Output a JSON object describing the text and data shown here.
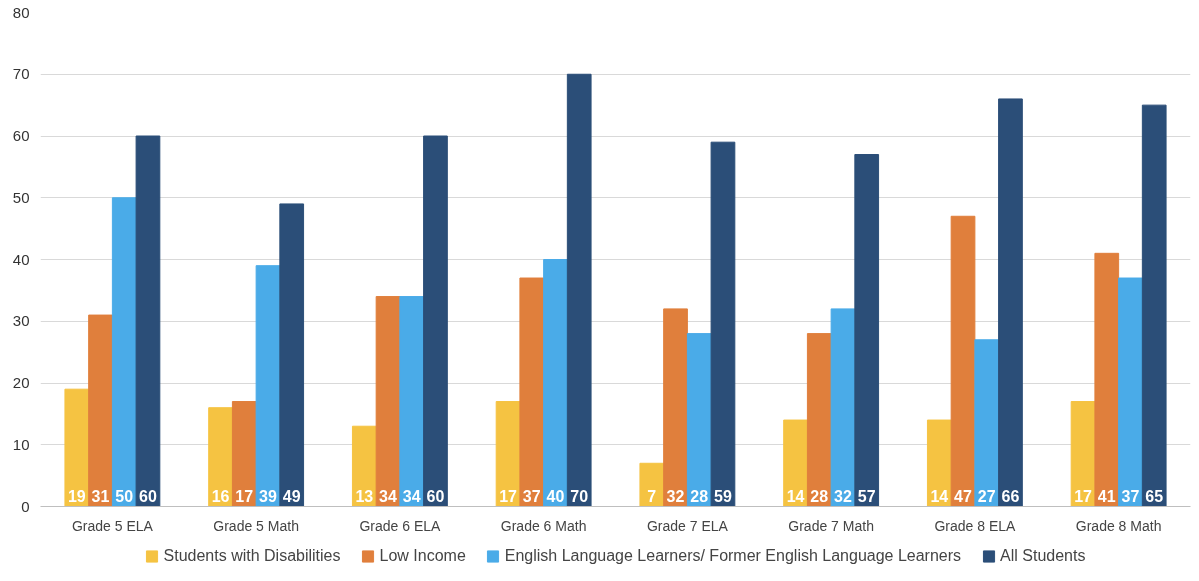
{
  "chart_data": {
    "type": "bar",
    "categories": [
      "Grade 5 ELA",
      "Grade 5 Math",
      "Grade 6 ELA",
      "Grade 6 Math",
      "Grade 7 ELA",
      "Grade 7 Math",
      "Grade 8 ELA",
      "Grade 8 Math"
    ],
    "series": [
      {
        "name": "Students with Disabilities",
        "color": "#f5c342",
        "values": [
          19,
          16,
          13,
          17,
          7,
          14,
          14,
          17
        ]
      },
      {
        "name": "Low Income",
        "color": "#e07f3c",
        "values": [
          31,
          17,
          34,
          37,
          32,
          28,
          47,
          41
        ]
      },
      {
        "name": "English Language Learners/ Former English Language Learners",
        "color": "#4aabe8",
        "values": [
          50,
          39,
          34,
          40,
          28,
          32,
          27,
          37
        ]
      },
      {
        "name": "All Students",
        "color": "#2b4e78",
        "values": [
          60,
          49,
          60,
          70,
          59,
          57,
          66,
          65
        ]
      }
    ],
    "ylim": [
      0,
      80
    ],
    "yticks": [
      0,
      10,
      20,
      30,
      40,
      50,
      60,
      70,
      80
    ],
    "grid": "y",
    "legend": "bottom",
    "data_labels": true
  }
}
